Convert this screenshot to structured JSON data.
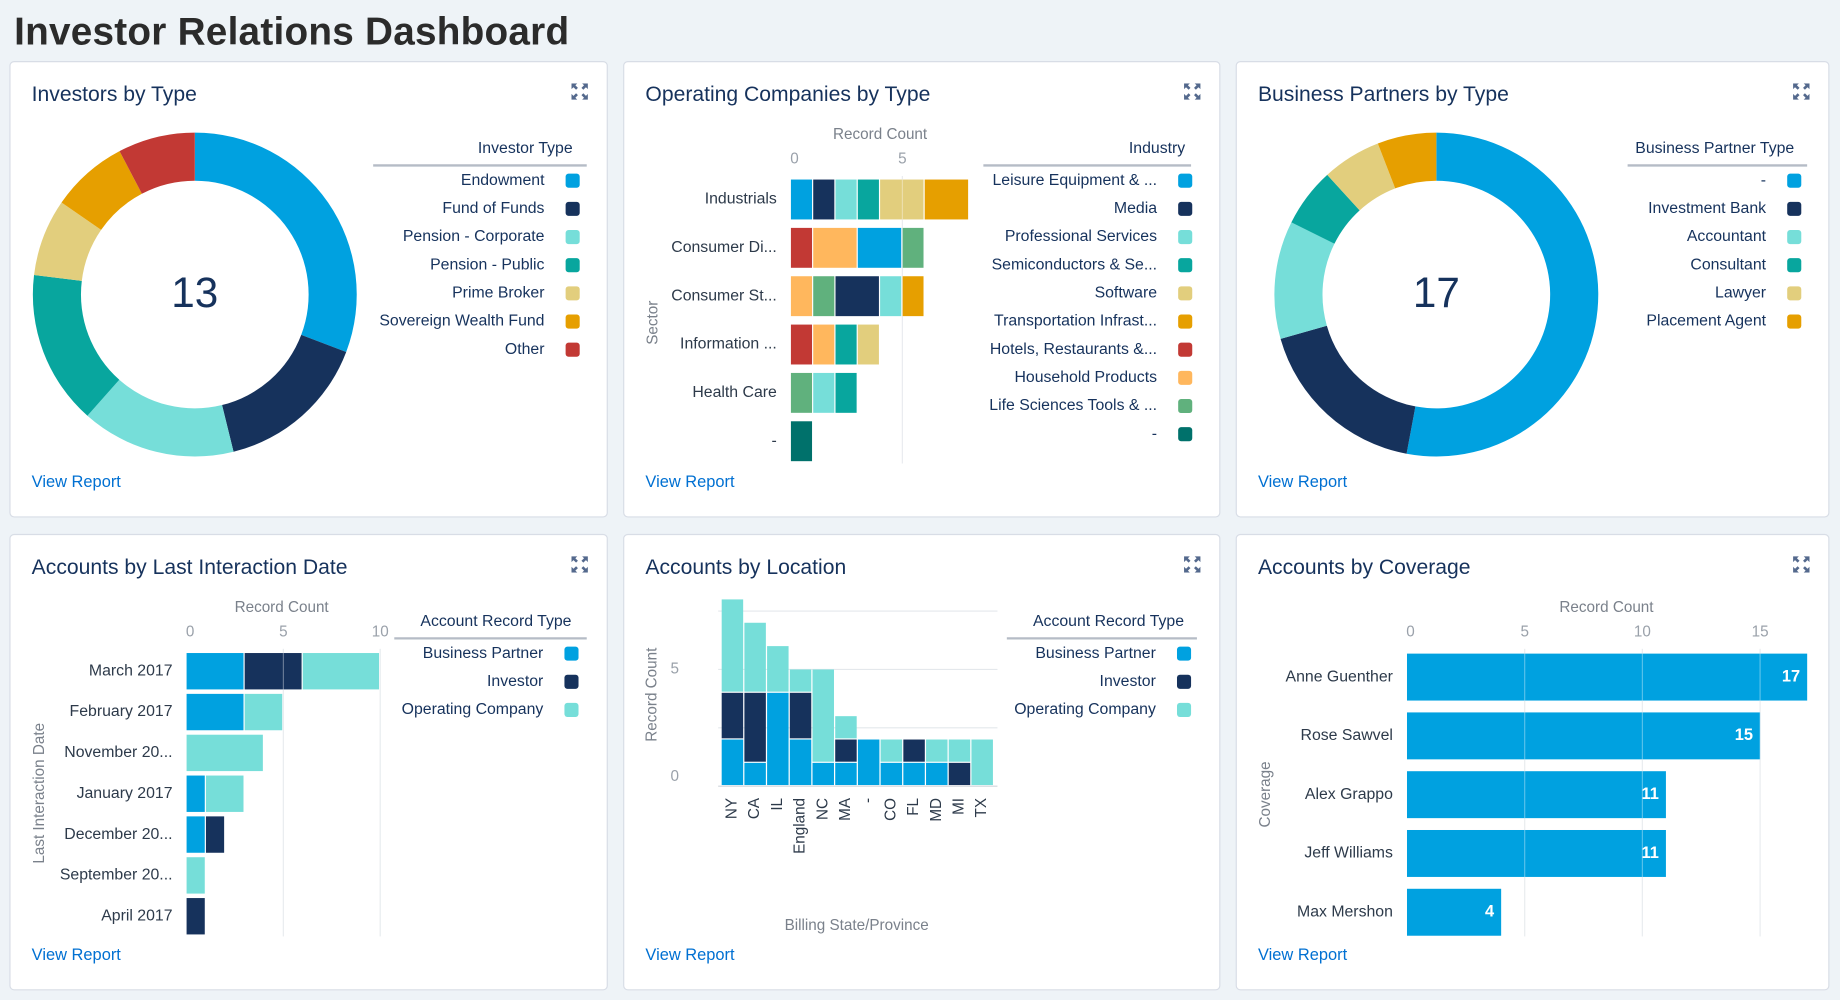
{
  "page": {
    "title": "Investor Relations Dashboard"
  },
  "colors": {
    "blue": "#00a1e0",
    "navy": "#16325c",
    "light_teal": "#76ded9",
    "teal": "#08a69e",
    "tan": "#e2ce7d",
    "orange": "#e69f00",
    "red": "#c23934",
    "peach": "#ffb75d",
    "green": "#60b17d",
    "dark_teal": "#00716b",
    "link": "#0070d2",
    "panel_title": "#16325c"
  },
  "panels": [
    {
      "title": "Investors by Type",
      "view_report": "View Report",
      "icon": "expand-icon"
    },
    {
      "title": "Operating Companies by Type",
      "view_report": "View Report",
      "icon": "expand-icon"
    },
    {
      "title": "Business Partners by Type",
      "view_report": "View Report",
      "icon": "expand-icon"
    },
    {
      "title": "Accounts by Last Interaction Date",
      "view_report": "View Report",
      "icon": "expand-icon"
    },
    {
      "title": "Accounts by Location",
      "view_report": "View Report",
      "icon": "expand-icon"
    },
    {
      "title": "Accounts by Coverage",
      "view_report": "View Report",
      "icon": "expand-icon"
    }
  ],
  "chart_data": [
    {
      "type": "pie",
      "variant": "donut",
      "center_label": "13",
      "legend_title": "Investor Type",
      "legend": "right",
      "categories": [
        "Endowment",
        "Fund of Funds",
        "Pension - Corporate",
        "Pension - Public",
        "Prime Broker",
        "Sovereign Wealth Fund",
        "Other"
      ],
      "values": [
        4,
        2,
        2,
        2,
        1,
        1,
        1
      ],
      "colors": [
        "#00a1e0",
        "#16325c",
        "#76ded9",
        "#08a69e",
        "#e2ce7d",
        "#e69f00",
        "#c23934"
      ]
    },
    {
      "type": "bar",
      "orientation": "horizontal",
      "stacked": true,
      "xlabel": "Record Count",
      "ylabel": "Sector",
      "xticks": [
        0,
        5
      ],
      "xlim": [
        0,
        8
      ],
      "legend_title": "Industry",
      "legend": "right",
      "categories": [
        "Industrials",
        "Consumer Di...",
        "Consumer St...",
        "Information ...",
        "Health Care",
        "-"
      ],
      "series": [
        {
          "name": "Leisure Equipment & ...",
          "color": "#00a1e0",
          "values": [
            1,
            2,
            0,
            0,
            0,
            0
          ]
        },
        {
          "name": "Media",
          "color": "#16325c",
          "values": [
            1,
            0,
            2,
            0,
            0,
            0
          ]
        },
        {
          "name": "Professional Services",
          "color": "#76ded9",
          "values": [
            1,
            0,
            1,
            0,
            1,
            0
          ]
        },
        {
          "name": "Semiconductors & Se...",
          "color": "#08a69e",
          "values": [
            1,
            0,
            0,
            1,
            1,
            0
          ]
        },
        {
          "name": "Software",
          "color": "#e2ce7d",
          "values": [
            2,
            0,
            0,
            1,
            0,
            0
          ]
        },
        {
          "name": "Transportation Infrast...",
          "color": "#e69f00",
          "values": [
            2,
            0,
            1,
            0,
            0,
            0
          ]
        },
        {
          "name": "Hotels, Restaurants &...",
          "color": "#c23934",
          "values": [
            0,
            1,
            0,
            1,
            0,
            0
          ]
        },
        {
          "name": "Household Products",
          "color": "#ffb75d",
          "values": [
            0,
            2,
            1,
            1,
            0,
            0
          ]
        },
        {
          "name": "Life Sciences Tools & ...",
          "color": "#60b17d",
          "values": [
            0,
            1,
            1,
            0,
            1,
            0
          ]
        },
        {
          "name": "-",
          "color": "#00716b",
          "values": [
            0,
            0,
            0,
            0,
            0,
            1
          ]
        }
      ]
    },
    {
      "type": "pie",
      "variant": "donut",
      "center_label": "17",
      "legend_title": "Business Partner Type",
      "legend": "right",
      "categories": [
        "-",
        "Investment Bank",
        "Accountant",
        "Consultant",
        "Lawyer",
        "Placement Agent"
      ],
      "values": [
        9,
        3,
        2,
        1,
        1,
        1
      ],
      "colors": [
        "#00a1e0",
        "#16325c",
        "#76ded9",
        "#08a69e",
        "#e2ce7d",
        "#e69f00"
      ]
    },
    {
      "type": "bar",
      "orientation": "horizontal",
      "stacked": true,
      "xlabel": "Record Count",
      "ylabel": "Last Interaction Date",
      "xticks": [
        0,
        5,
        10
      ],
      "xlim": [
        0,
        10
      ],
      "legend_title": "Account Record Type",
      "legend": "right",
      "categories": [
        "March 2017",
        "February 2017",
        "November 20...",
        "January 2017",
        "December 20...",
        "September 20...",
        "April 2017"
      ],
      "series": [
        {
          "name": "Business Partner",
          "color": "#00a1e0",
          "values": [
            3,
            3,
            0,
            1,
            1,
            0,
            0
          ]
        },
        {
          "name": "Investor",
          "color": "#16325c",
          "values": [
            3,
            0,
            0,
            0,
            1,
            0,
            1
          ]
        },
        {
          "name": "Operating Company",
          "color": "#76ded9",
          "values": [
            4,
            2,
            4,
            2,
            0,
            1,
            0
          ]
        }
      ]
    },
    {
      "type": "bar",
      "orientation": "vertical",
      "stacked": true,
      "xlabel": "Billing State/Province",
      "ylabel": "Record Count",
      "yticks": [
        0,
        5
      ],
      "ylim": [
        0,
        8
      ],
      "legend_title": "Account Record Type",
      "legend": "right",
      "categories": [
        "NY",
        "CA",
        "IL",
        "England",
        "NC",
        "MA",
        "-",
        "CO",
        "FL",
        "MD",
        "MI",
        "TX",
        "-"
      ],
      "series": [
        {
          "name": "Business Partner",
          "color": "#00a1e0",
          "values": [
            2,
            1,
            4,
            2,
            1,
            1,
            2,
            1,
            1,
            1,
            0,
            0,
            0
          ]
        },
        {
          "name": "Investor",
          "color": "#16325c",
          "values": [
            2,
            3,
            0,
            2,
            0,
            1,
            0,
            0,
            1,
            0,
            1,
            0,
            0
          ]
        },
        {
          "name": "Operating Company",
          "color": "#76ded9",
          "values": [
            4,
            3,
            2,
            1,
            4,
            1,
            0,
            1,
            0,
            1,
            1,
            2,
            1
          ]
        }
      ]
    },
    {
      "type": "bar",
      "orientation": "horizontal",
      "xlabel": "Record Count",
      "ylabel": "Coverage",
      "xticks": [
        0,
        5,
        10,
        15
      ],
      "xlim": [
        0,
        17
      ],
      "categories": [
        "Anne Guenther",
        "Rose Sawvel",
        "Alex Grappo",
        "Jeff Williams",
        "Max Mershon"
      ],
      "values": [
        17,
        15,
        11,
        11,
        4
      ],
      "data_labels": [
        "17",
        "15",
        "11",
        "11",
        "4"
      ],
      "color": "#00a1e0"
    }
  ]
}
